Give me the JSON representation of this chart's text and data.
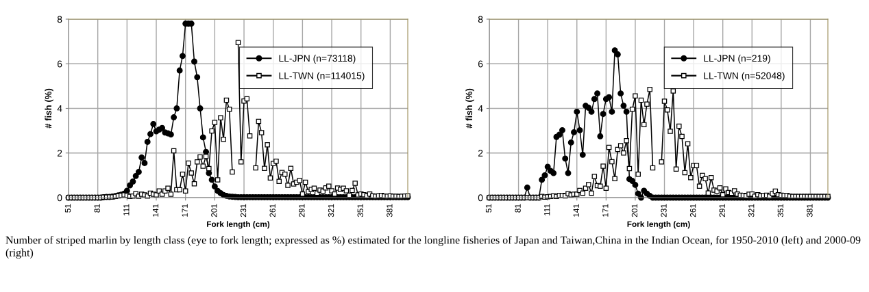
{
  "chart_data": [
    {
      "type": "line",
      "xlabel": "Fork length (cm)",
      "ylabel": "# fish (%)",
      "x": [
        51,
        54,
        57,
        60,
        63,
        66,
        69,
        72,
        75,
        78,
        81,
        84,
        87,
        90,
        93,
        96,
        99,
        102,
        105,
        108,
        111,
        114,
        117,
        120,
        123,
        126,
        129,
        132,
        135,
        138,
        141,
        144,
        147,
        150,
        153,
        156,
        159,
        162,
        165,
        168,
        171,
        174,
        177,
        180,
        183,
        186,
        189,
        192,
        195,
        198,
        201,
        204,
        207,
        210,
        213,
        216,
        219,
        222,
        225,
        228,
        231,
        234,
        237,
        240,
        243,
        246,
        249,
        252,
        255,
        258,
        261,
        264,
        267,
        270,
        273,
        276,
        279,
        282,
        285,
        288,
        291,
        294,
        297,
        300,
        303,
        306,
        309,
        312,
        315,
        318,
        321,
        324,
        327,
        330,
        333,
        336,
        339,
        342,
        345,
        348,
        351,
        354,
        357,
        360,
        363,
        366,
        369,
        372,
        375,
        378,
        381,
        384,
        387,
        390,
        393,
        396,
        399
      ],
      "xlim": [
        51,
        399
      ],
      "xticks": [
        51,
        81,
        111,
        141,
        171,
        201,
        231,
        261,
        291,
        321,
        351,
        381
      ],
      "ylim": [
        0,
        8
      ],
      "yticks": [
        0,
        2,
        4,
        6,
        8
      ],
      "grid": true,
      "legend": "top right",
      "series": [
        {
          "name": "LL-JPN (n=73118)",
          "color": "#000000",
          "marker": "circle",
          "values": [
            0,
            0,
            0,
            0,
            0,
            0,
            0,
            0,
            0,
            0,
            0,
            0,
            0.02,
            0.03,
            0.03,
            0.05,
            0.07,
            0.1,
            0.13,
            0.18,
            0.31,
            0.55,
            0.72,
            0.97,
            1.15,
            1.8,
            1.55,
            2.5,
            2.85,
            3.3,
            2.97,
            3.05,
            3.12,
            2.92,
            2.88,
            2.83,
            3.6,
            4.0,
            5.7,
            6.35,
            7.8,
            7.8,
            7.8,
            6.1,
            5.4,
            4.0,
            2.7,
            2.05,
            1.1,
            0.8,
            0.5,
            0.3,
            0.2,
            0.12,
            0.08,
            0.05,
            0.04,
            0.03,
            0.02,
            0.02,
            0.02,
            0.02,
            0.02,
            0.02,
            0.02,
            0.02,
            0.02,
            0.02,
            0.02,
            0.02,
            0.02,
            0.02,
            0.02,
            0.02,
            0.02,
            0.02,
            0.02,
            0.02,
            0.02,
            0.02,
            0.02,
            0.02,
            0.02,
            0.02,
            0.02,
            0.02,
            0.02,
            0.02,
            0.02,
            0.02,
            0.02,
            0.02,
            0.02,
            0.02,
            0.02,
            0.02,
            0.02,
            0.02,
            0.02,
            0.02,
            0.02,
            0.02,
            0.02,
            0.02,
            0.02,
            0.02,
            0.02,
            0.02,
            0.02,
            0.02,
            0.02,
            0.02,
            0.02,
            0.02,
            0.02,
            0.02,
            0.02
          ]
        },
        {
          "name": "LL-TWN (n=114015)",
          "color": "#000000",
          "marker": "square",
          "values": [
            0,
            0,
            0,
            0,
            0,
            0,
            0,
            0,
            0,
            0,
            0,
            0,
            0.02,
            0.02,
            0.03,
            0.03,
            0.05,
            0.08,
            0.1,
            0.12,
            0.1,
            0.05,
            0.07,
            0.18,
            0.06,
            0.15,
            0.12,
            0.07,
            0.2,
            0.15,
            0.12,
            0.3,
            0.15,
            0.3,
            0.42,
            0.15,
            2.1,
            0.35,
            0.35,
            1.05,
            0.3,
            1.55,
            1.1,
            0.62,
            1.6,
            1.82,
            1.41,
            1.85,
            1.3,
            2.99,
            3.37,
            0.8,
            3.58,
            2.61,
            4.37,
            3.96,
            1.15,
            null,
            6.95,
            1.6,
            4.33,
            4.43,
            2.77,
            null,
            1.33,
            3.42,
            2.91,
            1.31,
            2.37,
            0.88,
            1.53,
            1.63,
            0.73,
            1.13,
            1.05,
            0.55,
            1.31,
            0.61,
            0.69,
            0.77,
            0.16,
            0.69,
            0.27,
            0.37,
            0.42,
            0.2,
            0.34,
            0.29,
            0.44,
            0.51,
            0.31,
            0.16,
            0.43,
            0.37,
            0.42,
            0.31,
            0.11,
            0.32,
            0.64,
            0.12,
            0.16,
            0.13,
            0.08,
            0.16,
            0.08,
            0.06,
            0.08,
            0.1,
            0.07,
            0.06,
            0.08,
            0.06,
            0.06,
            0.05,
            0.06,
            0.07,
            0.08
          ]
        }
      ],
      "annotations": [
        "Number of striped marlin by length class (eye to fork length; expressed as %) estimated for the longline fisheries of Japan and Taiwan,China in the Indian Ocean, for 1950-2010 (left) and 2000-09 (right)"
      ]
    },
    {
      "type": "line",
      "xlabel": "Fork length (cm)",
      "ylabel": "# fish (%)",
      "x": [
        51,
        54,
        57,
        60,
        63,
        66,
        69,
        72,
        75,
        78,
        81,
        84,
        87,
        90,
        93,
        96,
        99,
        102,
        105,
        108,
        111,
        114,
        117,
        120,
        123,
        126,
        129,
        132,
        135,
        138,
        141,
        144,
        147,
        150,
        153,
        156,
        159,
        162,
        165,
        168,
        171,
        174,
        177,
        180,
        183,
        186,
        189,
        192,
        195,
        198,
        201,
        204,
        207,
        210,
        213,
        216,
        219,
        222,
        225,
        228,
        231,
        234,
        237,
        240,
        243,
        246,
        249,
        252,
        255,
        258,
        261,
        264,
        267,
        270,
        273,
        276,
        279,
        282,
        285,
        288,
        291,
        294,
        297,
        300,
        303,
        306,
        309,
        312,
        315,
        318,
        321,
        324,
        327,
        330,
        333,
        336,
        339,
        342,
        345,
        348,
        351,
        354,
        357,
        360,
        363,
        366,
        369,
        372,
        375,
        378,
        381,
        384,
        387,
        390,
        393,
        396,
        399
      ],
      "xlim": [
        51,
        399
      ],
      "xticks": [
        51,
        81,
        111,
        141,
        171,
        201,
        231,
        261,
        291,
        321,
        351,
        381
      ],
      "ylim": [
        0,
        8
      ],
      "yticks": [
        0,
        2,
        4,
        6,
        8
      ],
      "grid": true,
      "legend": "top right",
      "series": [
        {
          "name": "LL-JPN (n=219)",
          "color": "#000000",
          "marker": "circle",
          "values": [
            0,
            0,
            0,
            0,
            0,
            0,
            0,
            0,
            0,
            0,
            0,
            0,
            0,
            0.45,
            0,
            0,
            0,
            0,
            0.8,
            1.0,
            1.38,
            1.2,
            1.1,
            2.72,
            2.82,
            3.02,
            1.75,
            1.1,
            2.47,
            2.93,
            3.85,
            3.02,
            1.92,
            4.12,
            4.03,
            3.85,
            4.42,
            4.67,
            2.75,
            3.75,
            4.42,
            4.5,
            3.85,
            6.6,
            6.42,
            4.67,
            4.12,
            3.85,
            0.83,
            0.75,
            0.57,
            0.18,
            0,
            0.31,
            0.18,
            0.08,
            0,
            0,
            0,
            0,
            0,
            0,
            0,
            0,
            0,
            0,
            0,
            0,
            0,
            0,
            0,
            0,
            0,
            0,
            0,
            0,
            0,
            0,
            0,
            0,
            0,
            0,
            0,
            0,
            0,
            0,
            0,
            0,
            0,
            0,
            0,
            0,
            0,
            0,
            0,
            0,
            0,
            0,
            0,
            0,
            0,
            0,
            0,
            0,
            0,
            0,
            0,
            0,
            0,
            0,
            0,
            0,
            0,
            0,
            0,
            0,
            0
          ]
        },
        {
          "name": "LL-TWN (n=52048)",
          "color": "#000000",
          "marker": "square",
          "values": [
            0,
            0,
            0,
            0,
            0,
            0,
            0,
            0,
            0,
            0,
            0,
            0,
            0,
            0,
            0,
            0,
            0,
            0,
            0.05,
            0.02,
            0.04,
            0.05,
            0.08,
            0.05,
            0.1,
            0.1,
            0.08,
            0.18,
            0.12,
            0.15,
            0.15,
            0.32,
            0.2,
            0.42,
            0.58,
            0.2,
            0.95,
            0.54,
            0.51,
            1.41,
            0.42,
            2.25,
            1.61,
            0.85,
            2.16,
            2.33,
            2.0,
            2.55,
            1.3,
            3.96,
            4.56,
            1.05,
            4.37,
            3.27,
            4.19,
            4.85,
            1.33,
            null,
            null,
            1.6,
            4.32,
            3.93,
            2.97,
            4.78,
            1.28,
            3.2,
            2.74,
            1.12,
            2.41,
            0.9,
            1.44,
            1.44,
            0.51,
            1.0,
            0.85,
            0.21,
            0.9,
            0.34,
            0.29,
            0.44,
            0.13,
            0.39,
            0.23,
            0.2,
            0.31,
            0.16,
            0.11,
            0.1,
            0.08,
            0.15,
            0.16,
            0.06,
            0.13,
            0.08,
            0.1,
            0.11,
            0.06,
            0.18,
            0.29,
            0.13,
            0.11,
            0.1,
            0.1,
            0.06,
            0.05,
            0.05,
            0.05,
            0.05,
            0.05,
            0.05,
            0.05,
            0.05,
            0.05,
            0.05,
            0.05,
            0.05,
            0.05
          ]
        }
      ]
    }
  ]
}
